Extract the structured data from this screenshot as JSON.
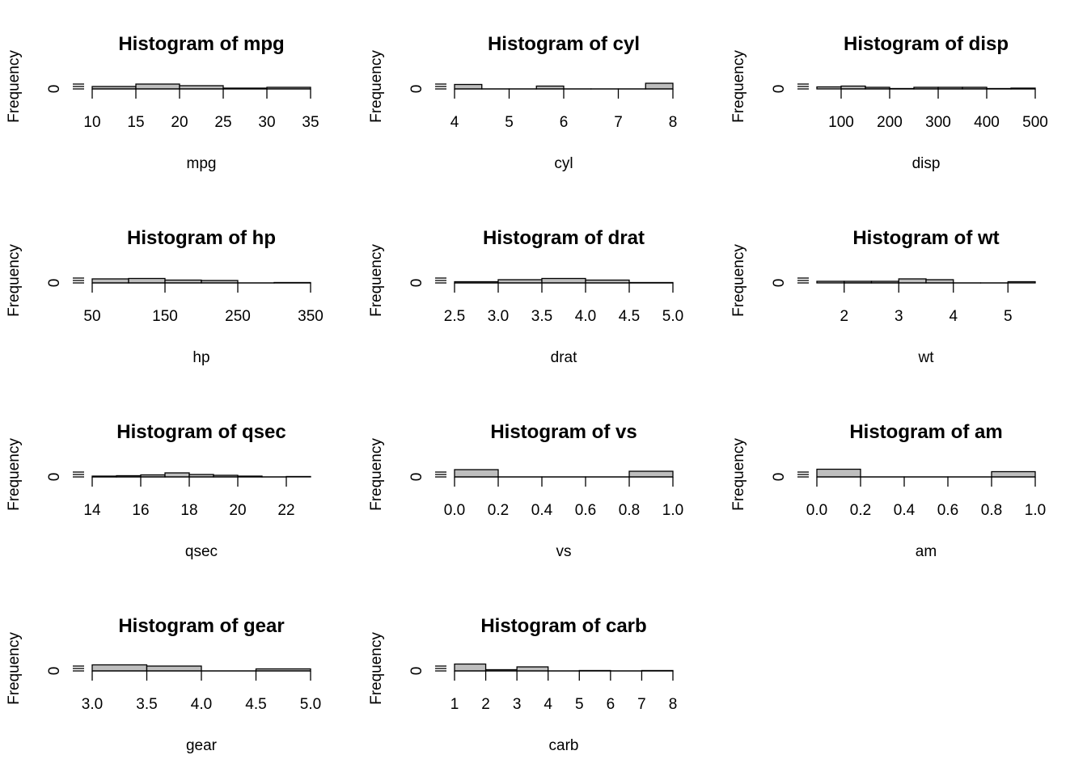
{
  "chart_data": [
    {
      "type": "bar",
      "title": "Histogram of mpg",
      "xlabel": "mpg",
      "ylabel": "Frequency",
      "x_ticks": [
        10,
        15,
        20,
        25,
        30,
        35
      ],
      "y_ticks": [
        0
      ],
      "breaks": [
        10,
        15,
        20,
        25,
        30,
        35
      ],
      "counts": [
        6,
        12,
        8,
        2,
        4
      ]
    },
    {
      "type": "bar",
      "title": "Histogram of cyl",
      "xlabel": "cyl",
      "ylabel": "Frequency",
      "x_ticks": [
        4,
        5,
        6,
        7,
        8
      ],
      "y_ticks": [
        0
      ],
      "breaks": [
        4,
        4.5,
        5,
        5.5,
        6,
        6.5,
        7,
        7.5,
        8
      ],
      "counts": [
        11,
        0,
        0,
        7,
        0,
        0,
        0,
        14
      ]
    },
    {
      "type": "bar",
      "title": "Histogram of disp",
      "xlabel": "disp",
      "ylabel": "Frequency",
      "x_ticks": [
        100,
        200,
        300,
        400,
        500
      ],
      "y_ticks": [
        0
      ],
      "breaks": [
        50,
        100,
        150,
        200,
        250,
        300,
        350,
        400,
        450,
        500
      ],
      "counts": [
        5,
        7,
        4,
        1,
        4,
        4,
        4,
        1,
        2
      ]
    },
    {
      "type": "bar",
      "title": "Histogram of hp",
      "xlabel": "hp",
      "ylabel": "Frequency",
      "x_ticks": [
        50,
        150,
        250,
        350
      ],
      "y_ticks": [
        0
      ],
      "breaks": [
        50,
        100,
        150,
        200,
        250,
        300,
        350
      ],
      "counts": [
        10,
        11,
        7,
        6,
        0,
        1
      ]
    },
    {
      "type": "bar",
      "title": "Histogram of drat",
      "xlabel": "drat",
      "ylabel": "Frequency",
      "x_ticks": [
        "2.5",
        "3.0",
        "3.5",
        "4.0",
        "4.5",
        "5.0"
      ],
      "y_ticks": [
        0
      ],
      "breaks": [
        2.5,
        3.0,
        3.5,
        4.0,
        4.5,
        5.0
      ],
      "counts": [
        3,
        8,
        11,
        7,
        1
      ]
    },
    {
      "type": "bar",
      "title": "Histogram of wt",
      "xlabel": "wt",
      "ylabel": "Frequency",
      "x_ticks": [
        2,
        3,
        4,
        5
      ],
      "y_ticks": [
        0
      ],
      "breaks": [
        1.5,
        2,
        2.5,
        3,
        3.5,
        4,
        4.5,
        5,
        5.5
      ],
      "counts": [
        4,
        4,
        4,
        10,
        8,
        0,
        0,
        3
      ]
    },
    {
      "type": "bar",
      "title": "Histogram of qsec",
      "xlabel": "qsec",
      "ylabel": "Frequency",
      "x_ticks": [
        14,
        16,
        18,
        20,
        22
      ],
      "y_ticks": [
        0
      ],
      "breaks": [
        14,
        15,
        16,
        17,
        18,
        19,
        20,
        21,
        22,
        23
      ],
      "counts": [
        2,
        3,
        5,
        10,
        6,
        4,
        2,
        0,
        1
      ]
    },
    {
      "type": "bar",
      "title": "Histogram of vs",
      "xlabel": "vs",
      "ylabel": "Frequency",
      "x_ticks": [
        "0.0",
        "0.2",
        "0.4",
        "0.6",
        "0.8",
        "1.0"
      ],
      "y_ticks": [
        0
      ],
      "breaks": [
        0,
        0.2,
        0.4,
        0.6,
        0.8,
        1.0
      ],
      "counts": [
        18,
        0,
        0,
        0,
        14
      ]
    },
    {
      "type": "bar",
      "title": "Histogram of am",
      "xlabel": "am",
      "ylabel": "Frequency",
      "x_ticks": [
        "0.0",
        "0.2",
        "0.4",
        "0.6",
        "0.8",
        "1.0"
      ],
      "y_ticks": [
        0
      ],
      "breaks": [
        0,
        0.2,
        0.4,
        0.6,
        0.8,
        1.0
      ],
      "counts": [
        19,
        0,
        0,
        0,
        13
      ]
    },
    {
      "type": "bar",
      "title": "Histogram of gear",
      "xlabel": "gear",
      "ylabel": "Frequency",
      "x_ticks": [
        "3.0",
        "3.5",
        "4.0",
        "4.5",
        "5.0"
      ],
      "y_ticks": [
        0
      ],
      "breaks": [
        3.0,
        3.5,
        4.0,
        4.5,
        5.0
      ],
      "counts": [
        15,
        12,
        0,
        5
      ]
    },
    {
      "type": "bar",
      "title": "Histogram of carb",
      "xlabel": "carb",
      "ylabel": "Frequency",
      "x_ticks": [
        1,
        2,
        3,
        4,
        5,
        6,
        7,
        8
      ],
      "y_ticks": [
        0
      ],
      "breaks": [
        1,
        2,
        3,
        4,
        5,
        6,
        7,
        8
      ],
      "counts": [
        17,
        3,
        10,
        0,
        1,
        0,
        1
      ]
    }
  ]
}
